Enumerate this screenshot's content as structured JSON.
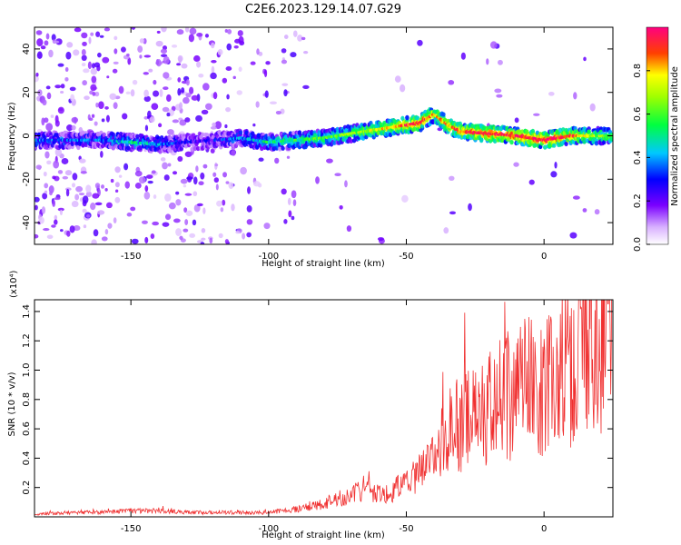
{
  "title": "C2E6.2023.129.14.07.G29",
  "chart_data": [
    {
      "type": "heatmap",
      "title": "C2E6.2023.129.14.07.G29",
      "xlabel": "Height of straight line (km)",
      "ylabel": "Frequency (Hz)",
      "xlim": [
        -185,
        25
      ],
      "ylim": [
        -50,
        50
      ],
      "x_ticks": [
        "-150",
        "-100",
        "-50",
        "0"
      ],
      "y_ticks": [
        "40",
        "20",
        "0",
        "-20",
        "-40"
      ],
      "colorbar": {
        "label": "Normalized spectral amplitude",
        "range": [
          0,
          1
        ],
        "ticks": [
          "0.0",
          "0.2",
          "0.4",
          "0.6",
          "0.8"
        ],
        "colormap": "rainbow (white-violet-blue-cyan-green-yellow-red-magenta)"
      },
      "ridge": {
        "x": [
          -160,
          -150,
          -140,
          -130,
          -120,
          -110,
          -100,
          -90,
          -80,
          -70,
          -60,
          -50,
          -45,
          -40,
          -35,
          -30,
          -20,
          -10,
          0,
          10,
          20
        ],
        "freq": [
          -2,
          -3,
          -4,
          -3,
          -2,
          -1,
          -3,
          -2,
          -1,
          1,
          3,
          5,
          6,
          10,
          5,
          2,
          1,
          0,
          -2,
          0,
          0
        ],
        "amplitude": [
          0.3,
          0.45,
          0.35,
          0.2,
          0.2,
          0.35,
          0.45,
          0.5,
          0.55,
          0.6,
          0.7,
          0.85,
          0.95,
          0.75,
          0.8,
          0.85,
          0.9,
          0.9,
          0.95,
          0.85,
          0.6
        ]
      },
      "grid": false
    },
    {
      "type": "line",
      "xlabel": "Height of straight line (km)",
      "ylabel": "SNR (10 * v/v)",
      "y_multiplier": "(x10⁴)",
      "xlim": [
        -185,
        25
      ],
      "ylim": [
        0,
        1.48
      ],
      "x_ticks": [
        "-150",
        "-100",
        "-50",
        "0"
      ],
      "y_ticks": [
        "0.2",
        "0.4",
        "0.6",
        "0.8",
        "1.0",
        "1.2",
        "1.4"
      ],
      "series": [
        {
          "color": "#f03030",
          "x": [
            -185,
            -170,
            -160,
            -150,
            -140,
            -130,
            -120,
            -110,
            -100,
            -95,
            -90,
            -85,
            -80,
            -75,
            -70,
            -65,
            -60,
            -55,
            -50,
            -45,
            -40,
            -35,
            -30,
            -25,
            -20,
            -15,
            -10,
            -5,
            0,
            5,
            10,
            15,
            20,
            25
          ],
          "y": [
            0.02,
            0.03,
            0.03,
            0.04,
            0.04,
            0.03,
            0.03,
            0.03,
            0.03,
            0.04,
            0.05,
            0.07,
            0.09,
            0.12,
            0.15,
            0.18,
            0.16,
            0.18,
            0.22,
            0.3,
            0.4,
            0.55,
            0.65,
            0.7,
            0.75,
            0.8,
            0.85,
            0.9,
            0.9,
            0.95,
            1.05,
            1.15,
            1.25,
            1.32
          ]
        }
      ],
      "grid": false
    }
  ]
}
